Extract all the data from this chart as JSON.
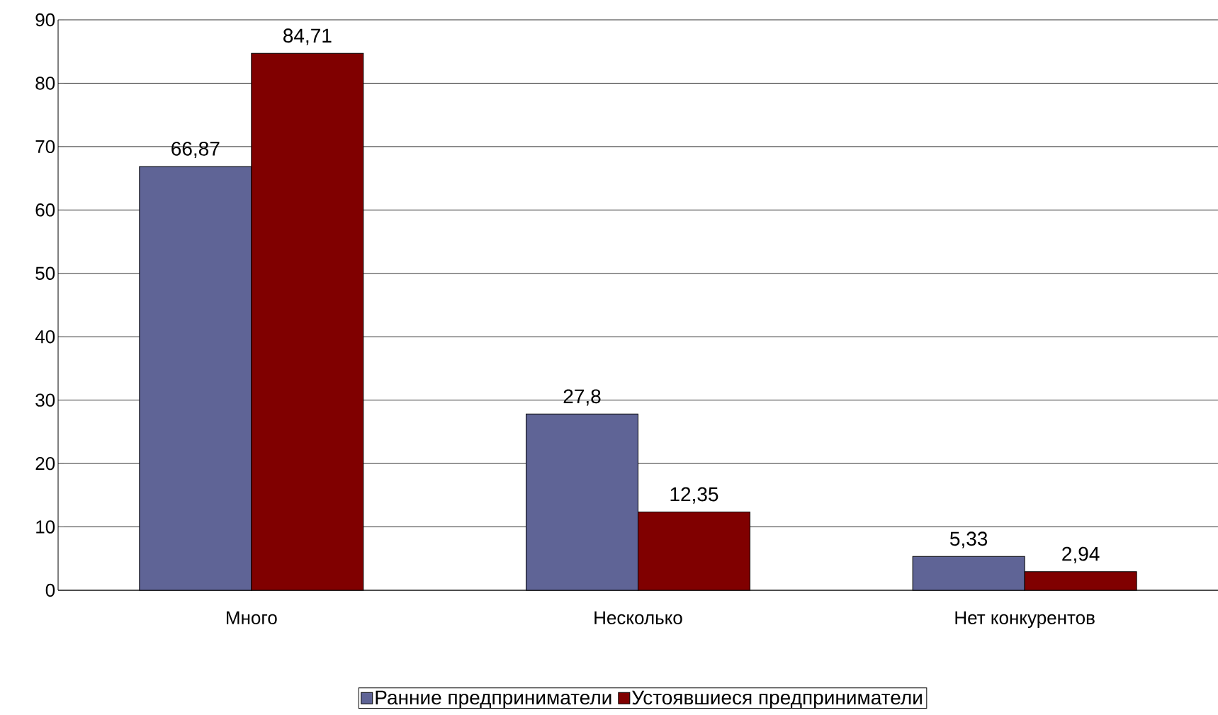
{
  "chart_data": {
    "type": "bar",
    "categories": [
      "Много",
      "Несколько",
      "Нет конкурентов"
    ],
    "series": [
      {
        "name": "Ранние предприниматели",
        "color": "#5f6496",
        "values": [
          66.87,
          27.8,
          5.33
        ],
        "value_labels": [
          "66,87",
          "27,8",
          "5,33"
        ]
      },
      {
        "name": "Устоявшиеся предприниматели",
        "color": "#800000",
        "values": [
          84.71,
          12.35,
          2.94
        ],
        "value_labels": [
          "84,71",
          "12,35",
          "2,94"
        ]
      }
    ],
    "ylim": [
      0,
      90
    ],
    "yticks": [
      0,
      10,
      20,
      30,
      40,
      50,
      60,
      70,
      80,
      90
    ],
    "grid": "y",
    "legend": "bottom"
  }
}
